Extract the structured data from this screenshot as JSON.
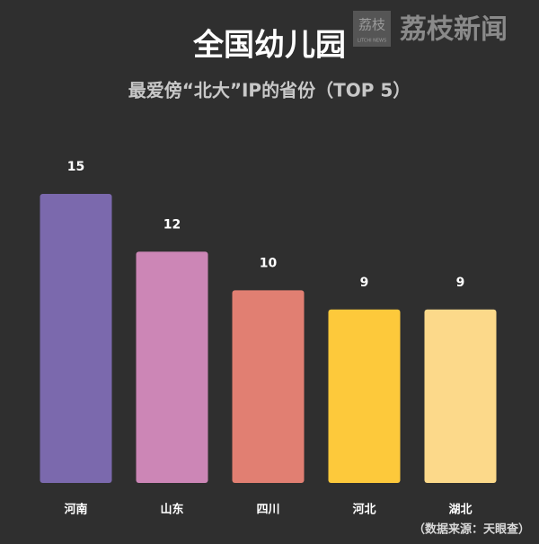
{
  "chart_data": {
    "type": "bar",
    "title": "全国幼儿园",
    "subtitle": "最爱傍“北大”IP的省份（TOP 5）",
    "categories": [
      "河南",
      "山东",
      "四川",
      "河北",
      "湖北"
    ],
    "values": [
      15,
      12,
      10,
      9,
      9
    ],
    "colors": [
      "#7b69ad",
      "#cc86b6",
      "#e17f72",
      "#fdc93b",
      "#fcd98a"
    ],
    "ylim": [
      0,
      15
    ],
    "source": "（数据来源：天眼查）",
    "watermark": {
      "logo": "荔枝",
      "logo_sub": "LITCHI NEWS",
      "name": "荔枝新闻"
    }
  }
}
